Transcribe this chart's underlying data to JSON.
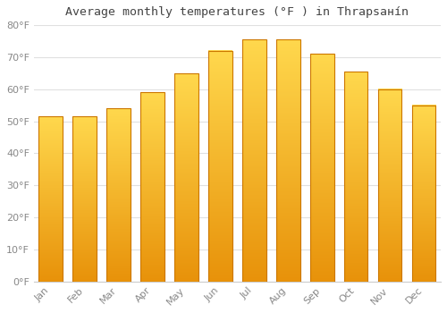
{
  "title": "Average monthly temperatures (°F ) in Thrapsанín",
  "months": [
    "Jan",
    "Feb",
    "Mar",
    "Apr",
    "May",
    "Jun",
    "Jul",
    "Aug",
    "Sep",
    "Oct",
    "Nov",
    "Dec"
  ],
  "values": [
    51.5,
    51.5,
    54.0,
    59.0,
    65.0,
    72.0,
    75.5,
    75.5,
    71.0,
    65.5,
    60.0,
    55.0
  ],
  "bar_color": "#FFAA00",
  "bar_top_color": "#FFD84D",
  "bar_edge_color": "#CC7700",
  "ylim": [
    0,
    80
  ],
  "yticks": [
    0,
    10,
    20,
    30,
    40,
    50,
    60,
    70,
    80
  ],
  "ytick_labels": [
    "0°F",
    "10°F",
    "20°F",
    "30°F",
    "40°F",
    "50°F",
    "60°F",
    "70°F",
    "80°F"
  ],
  "background_color": "#ffffff",
  "grid_color": "#e0e0e0",
  "title_fontsize": 9.5,
  "tick_fontsize": 8,
  "tick_color": "#888888",
  "bar_width": 0.7
}
